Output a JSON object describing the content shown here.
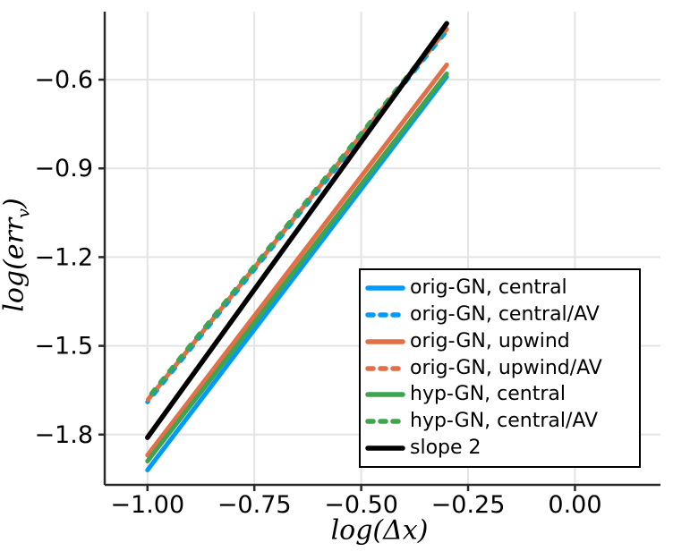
{
  "figure": {
    "xlabel": "log(Δx)",
    "ylabel_prefix": "log(err",
    "ylabel_sub": "v",
    "ylabel_suffix": ")",
    "background": "#ffffff",
    "grid_color": "#e4e4e4",
    "spine_color": "#2a2a2a",
    "tick_label_color": "#000000"
  },
  "chart_data": {
    "type": "line",
    "title": "",
    "xlabel": "log(Δx)",
    "ylabel": "log(err_v)",
    "xlim": [
      -1.1,
      0.2
    ],
    "ylim": [
      -1.97,
      -0.37
    ],
    "grid": true,
    "legend_position": "inside-bottom-right",
    "x_ticks": {
      "values": [
        -1.0,
        -0.75,
        -0.5,
        -0.25,
        0.0
      ],
      "labels": [
        "−1.00",
        "−0.75",
        "−0.50",
        "−0.25",
        "0.00"
      ]
    },
    "y_ticks": {
      "values": [
        -0.6,
        -0.9,
        -1.2,
        -1.5,
        -1.8
      ],
      "labels": [
        "−0.6",
        "−0.9",
        "−1.2",
        "−1.5",
        "−1.8"
      ]
    },
    "series": [
      {
        "name": "orig-GN, central",
        "color": "#009AFA",
        "style": "solid",
        "x": [
          -1.0,
          -0.3
        ],
        "y": [
          -1.92,
          -0.59
        ]
      },
      {
        "name": "orig-GN, central/AV",
        "color": "#009AFA",
        "style": "dashed",
        "x": [
          -1.0,
          -0.3
        ],
        "y": [
          -1.69,
          -0.435
        ]
      },
      {
        "name": "orig-GN, upwind",
        "color": "#E36F47",
        "style": "solid",
        "x": [
          -1.0,
          -0.3
        ],
        "y": [
          -1.87,
          -0.55
        ]
      },
      {
        "name": "orig-GN, upwind/AV",
        "color": "#E36F47",
        "style": "dashed",
        "x": [
          -1.0,
          -0.3
        ],
        "y": [
          -1.684,
          -0.429
        ]
      },
      {
        "name": "hyp-GN, central",
        "color": "#3EA44E",
        "style": "solid",
        "x": [
          -1.0,
          -0.3
        ],
        "y": [
          -1.89,
          -0.58
        ]
      },
      {
        "name": "hyp-GN, central/AV",
        "color": "#3EA44E",
        "style": "dashed",
        "x": [
          -1.0,
          -0.3
        ],
        "y": [
          -1.678,
          -0.423
        ]
      },
      {
        "name": "slope 2",
        "color": "#000000",
        "style": "solid",
        "x": [
          -1.0,
          -0.3
        ],
        "y": [
          -1.81,
          -0.41
        ]
      }
    ]
  }
}
